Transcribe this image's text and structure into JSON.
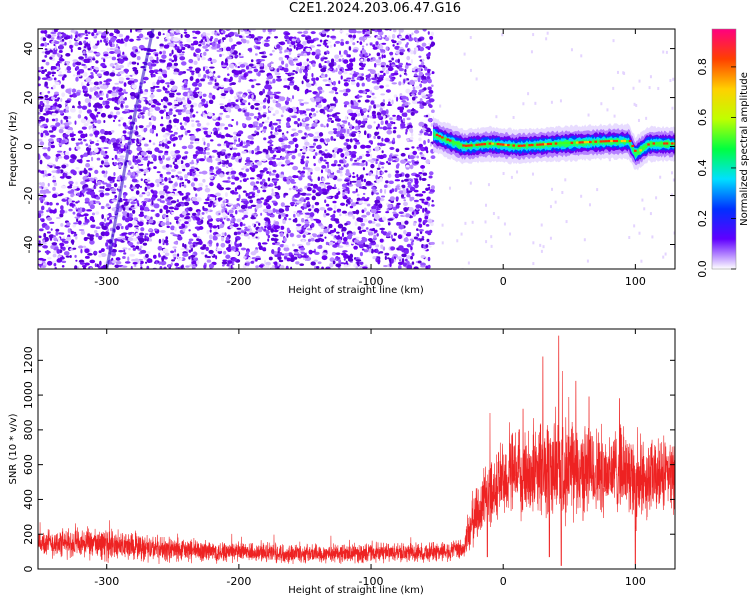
{
  "title": "C2E1.2024.203.06.47.G16",
  "colors": {
    "snr_line": "#ee2222",
    "axis": "#000000",
    "spectro_scatter": "#6a00f0"
  },
  "chart_data": [
    {
      "type": "heatmap",
      "title": "C2E1.2024.203.06.47.G16",
      "xlabel": "Height of straight line (km)",
      "ylabel": "Frequency (Hz)",
      "xlim": [
        -352,
        130
      ],
      "ylim": [
        -50,
        48
      ],
      "x_ticks": [
        "-300",
        "-200",
        "-100",
        "0",
        "100"
      ],
      "y_ticks": [
        "-40",
        "-20",
        "0",
        "20",
        "40"
      ],
      "colorbar": {
        "label": "Normalized spectral amplitude",
        "range": [
          0,
          0.95
        ],
        "ticks": [
          "0.0",
          "0.2",
          "0.4",
          "0.6",
          "0.8"
        ],
        "colormap": [
          "#ffffff",
          "#6000ff",
          "#0030ff",
          "#00e0ff",
          "#00ff40",
          "#c0ff00",
          "#ffd000",
          "#ff4000",
          "#ff0080"
        ]
      },
      "features": {
        "noise_region_x": [
          -352,
          -53
        ],
        "signal_start_x": -53,
        "signal_frequency_track": [
          [
            -53,
            5
          ],
          [
            -45,
            3
          ],
          [
            -30,
            0
          ],
          [
            -10,
            1
          ],
          [
            10,
            0
          ],
          [
            40,
            1
          ],
          [
            80,
            2
          ],
          [
            95,
            2
          ],
          [
            100,
            -3
          ],
          [
            110,
            1
          ],
          [
            130,
            1
          ]
        ],
        "faint_streak": [
          [
            -300,
            -50
          ],
          [
            -280,
            10
          ],
          [
            -265,
            48
          ]
        ]
      }
    },
    {
      "type": "line",
      "xlabel": "Height of straight line (km)",
      "ylabel": "SNR (10 * v/v)",
      "xlim": [
        -352,
        130
      ],
      "ylim": [
        0,
        1380
      ],
      "x_ticks": [
        "-300",
        "-200",
        "-100",
        "0",
        "100"
      ],
      "y_ticks": [
        "0",
        "200",
        "400",
        "600",
        "800",
        "1000",
        "1200"
      ],
      "series_envelope": {
        "x": [
          -352,
          -300,
          -250,
          -200,
          -150,
          -100,
          -60,
          -30,
          -25,
          -10,
          0,
          20,
          40,
          60,
          80,
          95,
          100,
          110,
          130
        ],
        "baseline": [
          150,
          140,
          110,
          95,
          90,
          90,
          95,
          110,
          250,
          450,
          520,
          560,
          580,
          560,
          560,
          580,
          500,
          520,
          540
        ],
        "spread": [
          80,
          90,
          70,
          60,
          55,
          55,
          55,
          60,
          150,
          200,
          230,
          260,
          300,
          270,
          250,
          230,
          260,
          220,
          200
        ],
        "peak": [
          [
            42,
            1340
          ],
          [
            30,
            1220
          ],
          [
            55,
            1080
          ],
          [
            65,
            990
          ],
          [
            88,
            980
          ],
          [
            15,
            920
          ]
        ],
        "dips": [
          [
            35,
            70
          ],
          [
            44,
            20
          ],
          [
            100,
            30
          ],
          [
            -12,
            70
          ]
        ]
      }
    }
  ]
}
